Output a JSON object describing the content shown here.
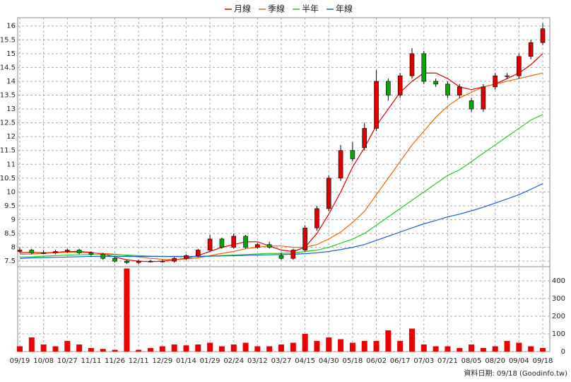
{
  "chart_data": [
    {
      "type": "candlestick",
      "categories": [
        "09/19",
        null,
        "10/08",
        null,
        "10/27",
        null,
        "11/11",
        null,
        "11/26",
        null,
        "12/11",
        null,
        "12/29",
        null,
        "01/14",
        null,
        "01/29",
        null,
        "02/24",
        null,
        "03/12",
        null,
        "03/27",
        null,
        "04/15",
        null,
        "04/30",
        null,
        "05/18",
        null,
        "06/02",
        null,
        "06/17",
        null,
        "07/03",
        null,
        "07/21",
        null,
        "08/05",
        null,
        "08/20",
        null,
        "09/04",
        null,
        "09/18"
      ],
      "open": [
        7.85,
        7.9,
        7.8,
        7.8,
        7.85,
        7.9,
        7.8,
        7.75,
        7.6,
        7.5,
        7.45,
        7.5,
        7.5,
        7.5,
        7.6,
        7.7,
        7.9,
        8.3,
        8.0,
        8.4,
        8.0,
        8.1,
        7.7,
        7.6,
        7.9,
        8.7,
        9.4,
        10.5,
        11.5,
        11.6,
        12.3,
        14.0,
        13.5,
        14.2,
        15.0,
        14.0,
        13.9,
        13.5,
        13.3,
        13.0,
        13.8,
        14.2,
        14.2,
        14.9,
        15.4
      ],
      "high": [
        8.0,
        7.95,
        7.9,
        7.9,
        7.95,
        7.95,
        7.85,
        7.8,
        7.65,
        7.55,
        7.55,
        7.55,
        7.55,
        7.65,
        7.75,
        7.95,
        8.45,
        8.35,
        8.5,
        8.45,
        8.15,
        8.2,
        7.8,
        7.95,
        8.8,
        9.5,
        10.6,
        11.7,
        11.8,
        12.5,
        14.4,
        14.1,
        14.3,
        15.2,
        15.1,
        14.1,
        14.0,
        13.9,
        13.4,
        13.9,
        14.3,
        14.3,
        15.0,
        15.5,
        16.1
      ],
      "low": [
        7.8,
        7.75,
        7.75,
        7.75,
        7.8,
        7.75,
        7.7,
        7.55,
        7.45,
        7.4,
        7.4,
        7.45,
        7.45,
        7.45,
        7.55,
        7.65,
        7.85,
        7.95,
        7.95,
        7.95,
        7.95,
        7.95,
        7.55,
        7.55,
        7.85,
        8.6,
        9.3,
        10.4,
        11.1,
        11.5,
        12.2,
        13.3,
        13.4,
        14.1,
        13.9,
        13.8,
        13.4,
        13.4,
        12.9,
        12.9,
        13.7,
        14.1,
        14.1,
        14.8,
        15.3
      ],
      "close": [
        7.9,
        7.8,
        7.8,
        7.85,
        7.9,
        7.8,
        7.75,
        7.6,
        7.5,
        7.45,
        7.5,
        7.5,
        7.5,
        7.6,
        7.7,
        7.9,
        8.3,
        8.0,
        8.4,
        8.0,
        8.1,
        8.0,
        7.6,
        7.9,
        8.7,
        9.4,
        10.5,
        11.5,
        11.2,
        12.3,
        14.0,
        13.5,
        14.2,
        15.0,
        14.0,
        13.9,
        13.5,
        13.8,
        13.0,
        13.8,
        14.2,
        14.2,
        14.9,
        15.4,
        15.9
      ],
      "up_color": "#dd0000",
      "down_color": "#00aa00",
      "series": [
        {
          "name": "月線",
          "color": "#dd0000",
          "values": [
            7.8,
            7.82,
            7.8,
            7.82,
            7.85,
            7.85,
            7.82,
            7.75,
            7.65,
            7.55,
            7.5,
            7.48,
            7.5,
            7.55,
            7.6,
            7.7,
            7.85,
            8.0,
            8.1,
            8.2,
            8.2,
            8.05,
            7.9,
            7.85,
            8.0,
            8.5,
            9.2,
            10.0,
            10.9,
            11.6,
            12.4,
            13.0,
            13.6,
            14.0,
            14.3,
            14.3,
            14.1,
            13.8,
            13.7,
            13.8,
            13.9,
            14.1,
            14.3,
            14.6,
            15.0
          ]
        },
        {
          "name": "季線",
          "color": "#ee6600",
          "values": [
            7.75,
            7.76,
            7.78,
            7.8,
            7.82,
            7.82,
            7.8,
            7.78,
            7.75,
            7.7,
            7.65,
            7.6,
            7.57,
            7.55,
            7.58,
            7.62,
            7.7,
            7.78,
            7.85,
            7.95,
            8.0,
            8.05,
            8.05,
            8.0,
            8.0,
            8.1,
            8.3,
            8.55,
            8.9,
            9.3,
            9.9,
            10.5,
            11.1,
            11.7,
            12.2,
            12.7,
            13.1,
            13.4,
            13.6,
            13.8,
            13.9,
            14.0,
            14.1,
            14.2,
            14.3
          ]
        },
        {
          "name": "半年",
          "color": "#22cc22",
          "values": [
            7.65,
            7.66,
            7.68,
            7.7,
            7.72,
            7.73,
            7.74,
            7.74,
            7.73,
            7.72,
            7.7,
            7.68,
            7.67,
            7.66,
            7.66,
            7.67,
            7.68,
            7.7,
            7.72,
            7.74,
            7.76,
            7.78,
            7.78,
            7.8,
            7.85,
            7.9,
            8.0,
            8.15,
            8.3,
            8.5,
            8.8,
            9.1,
            9.4,
            9.7,
            10.0,
            10.3,
            10.6,
            10.8,
            11.1,
            11.4,
            11.7,
            12.0,
            12.3,
            12.6,
            12.8
          ]
        },
        {
          "name": "年線",
          "color": "#1a5fd0",
          "values": [
            7.6,
            7.62,
            7.63,
            7.64,
            7.65,
            7.66,
            7.67,
            7.67,
            7.67,
            7.67,
            7.67,
            7.67,
            7.67,
            7.67,
            7.67,
            7.67,
            7.68,
            7.69,
            7.7,
            7.71,
            7.72,
            7.73,
            7.74,
            7.75,
            7.77,
            7.8,
            7.85,
            7.92,
            8.0,
            8.1,
            8.25,
            8.4,
            8.55,
            8.7,
            8.85,
            8.97,
            9.1,
            9.2,
            9.32,
            9.45,
            9.6,
            9.75,
            9.9,
            10.1,
            10.3
          ]
        }
      ],
      "ylim": [
        7.3,
        16.3
      ],
      "yticks": [
        7.5,
        8,
        8.5,
        9,
        9.5,
        10,
        10.5,
        11,
        11.5,
        12,
        12.5,
        13,
        13.5,
        14,
        14.5,
        15,
        15.5,
        16
      ],
      "grid": true
    },
    {
      "type": "bar",
      "values": [
        30,
        80,
        40,
        30,
        60,
        40,
        20,
        15,
        10,
        470,
        10,
        20,
        30,
        40,
        35,
        40,
        50,
        30,
        40,
        50,
        30,
        30,
        40,
        50,
        100,
        60,
        80,
        70,
        50,
        60,
        60,
        120,
        60,
        130,
        40,
        30,
        30,
        20,
        40,
        20,
        30,
        60,
        50,
        30,
        20
      ],
      "color": "#ee0000",
      "ylim": [
        0,
        468
      ],
      "yticks": [
        0,
        100,
        200,
        300,
        400
      ],
      "grid": true
    }
  ],
  "footer": "資料日期: 09/18 (Goodinfo.tw)"
}
